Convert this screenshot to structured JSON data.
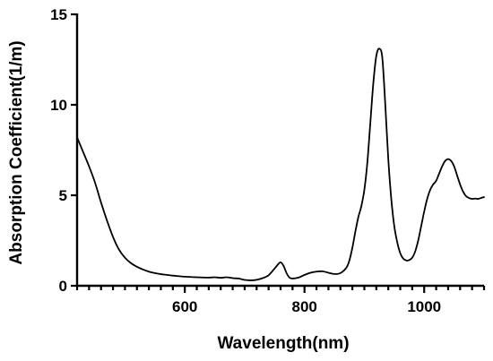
{
  "chart_data": {
    "type": "line",
    "title": "",
    "xlabel": "Wavelength(nm)",
    "ylabel": "Absorption Coefficient(1/m)",
    "xlim": [
      420,
      1100
    ],
    "ylim": [
      0,
      15
    ],
    "x_major_ticks": [
      600,
      800,
      1000
    ],
    "x_major_tick_labels": [
      "600",
      "800",
      "1000"
    ],
    "x_minor_step": 20,
    "y_ticks": [
      0,
      5,
      10,
      15
    ],
    "y_tick_labels": [
      "0",
      "5",
      "10",
      "15"
    ],
    "grid": false,
    "legend": "none",
    "line_color": "#000000",
    "series": [
      {
        "x": [
          420,
          430,
          440,
          450,
          460,
          470,
          480,
          490,
          500,
          510,
          520,
          530,
          540,
          550,
          560,
          570,
          580,
          590,
          600,
          620,
          640,
          650,
          660,
          670,
          680,
          690,
          700,
          710,
          720,
          730,
          740,
          750,
          755,
          760,
          765,
          770,
          775,
          780,
          790,
          800,
          810,
          820,
          830,
          840,
          850,
          860,
          870,
          875,
          880,
          885,
          890,
          895,
          900,
          905,
          910,
          915,
          920,
          925,
          930,
          935,
          940,
          945,
          950,
          955,
          960,
          965,
          970,
          975,
          980,
          985,
          990,
          995,
          1000,
          1005,
          1010,
          1015,
          1020,
          1025,
          1030,
          1035,
          1040,
          1045,
          1050,
          1055,
          1060,
          1065,
          1070,
          1075,
          1080,
          1085,
          1090,
          1095,
          1100
        ],
        "y": [
          8.2,
          7.4,
          6.6,
          5.7,
          4.6,
          3.6,
          2.7,
          2.0,
          1.55,
          1.25,
          1.05,
          0.9,
          0.78,
          0.7,
          0.64,
          0.6,
          0.56,
          0.53,
          0.5,
          0.47,
          0.45,
          0.47,
          0.44,
          0.47,
          0.42,
          0.4,
          0.32,
          0.3,
          0.33,
          0.42,
          0.58,
          0.95,
          1.15,
          1.3,
          1.1,
          0.7,
          0.45,
          0.4,
          0.45,
          0.6,
          0.72,
          0.78,
          0.8,
          0.72,
          0.65,
          0.7,
          1.0,
          1.4,
          2.1,
          3.0,
          3.8,
          4.4,
          5.3,
          6.8,
          9.0,
          11.2,
          12.7,
          13.1,
          12.6,
          10.0,
          7.0,
          4.8,
          3.3,
          2.4,
          1.8,
          1.5,
          1.4,
          1.42,
          1.55,
          1.9,
          2.5,
          3.3,
          4.1,
          4.8,
          5.3,
          5.6,
          5.8,
          6.2,
          6.6,
          6.9,
          7.0,
          6.9,
          6.6,
          6.1,
          5.6,
          5.2,
          4.95,
          4.85,
          4.8,
          4.82,
          4.8,
          4.85,
          4.9
        ]
      }
    ]
  }
}
